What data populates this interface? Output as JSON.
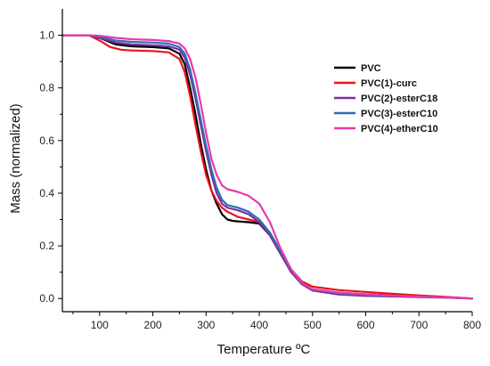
{
  "chart_data": {
    "type": "line",
    "title": "",
    "xlabel": "Temperature ºC",
    "ylabel": "Mass (normalized)",
    "xlim": [
      30,
      800
    ],
    "ylim": [
      -0.05,
      1.1
    ],
    "x_ticks": [
      100,
      200,
      300,
      400,
      500,
      600,
      700,
      800
    ],
    "x_tick_labels": [
      "100",
      "200",
      "300",
      "400",
      "500",
      "600",
      "700",
      "800"
    ],
    "y_ticks": [
      0.0,
      0.2,
      0.4,
      0.6,
      0.8,
      1.0
    ],
    "y_tick_labels": [
      "0.0",
      "0.2",
      "0.4",
      "0.6",
      "0.8",
      "1.0"
    ],
    "grid": false,
    "legend_position": "top-right",
    "series": [
      {
        "name": "PVC",
        "color": "#000000",
        "x": [
          30,
          80,
          100,
          130,
          160,
          200,
          230,
          250,
          260,
          270,
          280,
          290,
          300,
          310,
          320,
          330,
          340,
          350,
          360,
          380,
          400,
          420,
          440,
          460,
          480,
          500,
          550,
          600,
          650,
          700,
          750,
          800
        ],
        "y": [
          1.0,
          1.0,
          0.99,
          0.965,
          0.958,
          0.955,
          0.95,
          0.93,
          0.89,
          0.8,
          0.7,
          0.59,
          0.49,
          0.41,
          0.36,
          0.32,
          0.3,
          0.295,
          0.293,
          0.29,
          0.285,
          0.24,
          0.17,
          0.1,
          0.055,
          0.035,
          0.022,
          0.016,
          0.012,
          0.008,
          0.004,
          0.0
        ]
      },
      {
        "name": "PVC(1)-curc",
        "color": "#e8141b",
        "x": [
          30,
          80,
          100,
          120,
          140,
          160,
          200,
          230,
          250,
          260,
          270,
          280,
          290,
          300,
          310,
          320,
          330,
          340,
          350,
          360,
          380,
          400,
          420,
          440,
          460,
          480,
          500,
          550,
          600,
          650,
          700,
          750,
          800
        ],
        "y": [
          1.0,
          1.0,
          0.98,
          0.955,
          0.945,
          0.942,
          0.94,
          0.935,
          0.91,
          0.86,
          0.77,
          0.66,
          0.56,
          0.47,
          0.41,
          0.37,
          0.345,
          0.33,
          0.32,
          0.31,
          0.3,
          0.29,
          0.25,
          0.18,
          0.11,
          0.065,
          0.045,
          0.032,
          0.025,
          0.018,
          0.012,
          0.006,
          0.0
        ]
      },
      {
        "name": "PVC(2)-esterC18",
        "color": "#7b2fa3",
        "x": [
          30,
          80,
          100,
          130,
          160,
          200,
          230,
          250,
          260,
          270,
          280,
          290,
          300,
          310,
          320,
          330,
          340,
          350,
          360,
          380,
          400,
          420,
          440,
          460,
          480,
          500,
          550,
          600,
          650,
          700,
          750,
          800
        ],
        "y": [
          1.0,
          1.0,
          0.99,
          0.972,
          0.965,
          0.962,
          0.958,
          0.945,
          0.915,
          0.85,
          0.76,
          0.66,
          0.56,
          0.47,
          0.4,
          0.36,
          0.345,
          0.34,
          0.335,
          0.32,
          0.29,
          0.24,
          0.17,
          0.1,
          0.055,
          0.03,
          0.015,
          0.01,
          0.008,
          0.005,
          0.003,
          0.0
        ]
      },
      {
        "name": "PVC(3)-esterC10",
        "color": "#2f6db5",
        "x": [
          30,
          80,
          100,
          130,
          160,
          200,
          230,
          250,
          260,
          270,
          280,
          290,
          300,
          310,
          320,
          330,
          340,
          350,
          360,
          380,
          400,
          420,
          440,
          460,
          480,
          500,
          550,
          600,
          650,
          700,
          750,
          800
        ],
        "y": [
          1.0,
          1.0,
          0.995,
          0.98,
          0.975,
          0.972,
          0.968,
          0.955,
          0.93,
          0.87,
          0.78,
          0.68,
          0.58,
          0.49,
          0.42,
          0.375,
          0.355,
          0.35,
          0.345,
          0.33,
          0.3,
          0.25,
          0.18,
          0.11,
          0.06,
          0.035,
          0.02,
          0.014,
          0.01,
          0.007,
          0.004,
          0.0
        ]
      },
      {
        "name": "PVC(4)-etherC10",
        "color": "#e83aa8",
        "x": [
          30,
          80,
          100,
          130,
          160,
          200,
          230,
          250,
          260,
          270,
          280,
          290,
          300,
          310,
          320,
          330,
          340,
          350,
          360,
          380,
          400,
          420,
          440,
          460,
          480,
          500,
          550,
          600,
          650,
          700,
          750,
          800
        ],
        "y": [
          1.0,
          1.0,
          0.998,
          0.99,
          0.985,
          0.982,
          0.978,
          0.968,
          0.95,
          0.91,
          0.84,
          0.74,
          0.63,
          0.53,
          0.47,
          0.43,
          0.415,
          0.41,
          0.405,
          0.39,
          0.36,
          0.29,
          0.19,
          0.11,
          0.06,
          0.035,
          0.022,
          0.016,
          0.011,
          0.007,
          0.004,
          0.0
        ]
      }
    ]
  }
}
